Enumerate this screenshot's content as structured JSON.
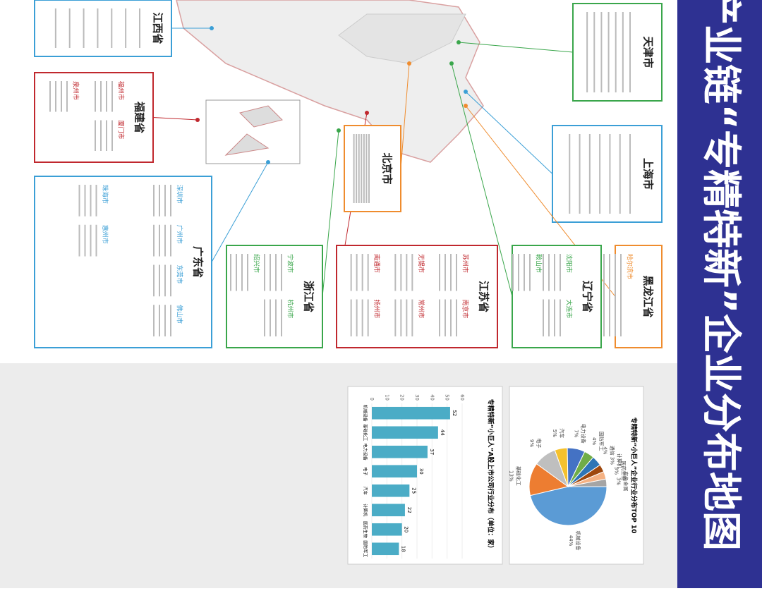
{
  "header": {
    "title": "产业链“专精特新”企业分布地图"
  },
  "regions": [
    {
      "name": "天津市",
      "color": "#3aa64b",
      "cities": []
    },
    {
      "name": "上海市",
      "color": "#3b9fd6",
      "cities": []
    },
    {
      "name": "黑龙江省",
      "color": "#ef8c2e",
      "cities": [
        "哈尔滨市"
      ]
    },
    {
      "name": "辽宁省",
      "color": "#3aa64b",
      "cities": [
        "沈阳市",
        "大连市",
        "鞍山市"
      ]
    },
    {
      "name": "江苏省",
      "color": "#c0282e",
      "cities": [
        "苏州市",
        "南京市",
        "无锡市",
        "常州市",
        "南通市",
        "扬州市"
      ]
    },
    {
      "name": "浙江省",
      "color": "#3aa64b",
      "cities": [
        "宁波市",
        "杭州市",
        "绍兴市"
      ]
    },
    {
      "name": "北京市",
      "color": "#ef8c2e",
      "cities": []
    },
    {
      "name": "广东省",
      "color": "#3b9fd6",
      "cities": [
        "深圳市",
        "广州市",
        "东莞市",
        "佛山市",
        "珠海市",
        "惠州市"
      ]
    },
    {
      "name": "福建省",
      "color": "#c0282e",
      "cities": [
        "福州市",
        "厦门市",
        "泉州市"
      ]
    },
    {
      "name": "江西省",
      "color": "#3b9fd6",
      "cities": []
    }
  ],
  "chart_data": [
    {
      "type": "pie",
      "title": "专精特新“小巨人”企业行业分布TOP 10",
      "categories": [
        "机械设备",
        "基础化工",
        "电子",
        "汽车",
        "电力设备",
        "国防军工",
        "通信",
        "计算机",
        "医药生物",
        "有色金属"
      ],
      "values": [
        44,
        13,
        9,
        5,
        7,
        4,
        4,
        3,
        3,
        3
      ],
      "value_labels": [
        "44%",
        "13%",
        "9%",
        "5%",
        "7%",
        "4%",
        "4%",
        "3%",
        "3%",
        "3%"
      ],
      "colors": [
        "#5b9bd5",
        "#ed7d31",
        "#bfbfbf",
        "#f5c12e",
        "#4472c4",
        "#70ad47",
        "#2e75b6",
        "#9e480e",
        "#f4b183",
        "#a5a5a5"
      ]
    },
    {
      "type": "bar",
      "title": "专精特新“小巨人”A股上市公司行业分布（单位：家）",
      "categories": [
        "机械设备",
        "基础化工",
        "电力设备",
        "电子",
        "汽车",
        "计算机",
        "医药生物",
        "国防军工"
      ],
      "values": [
        52,
        44,
        37,
        30,
        25,
        22,
        20,
        18
      ],
      "color": "#4bacc6",
      "ylim": [
        0,
        60
      ],
      "yticks": [
        0,
        10,
        20,
        30,
        40,
        50,
        60
      ]
    }
  ]
}
